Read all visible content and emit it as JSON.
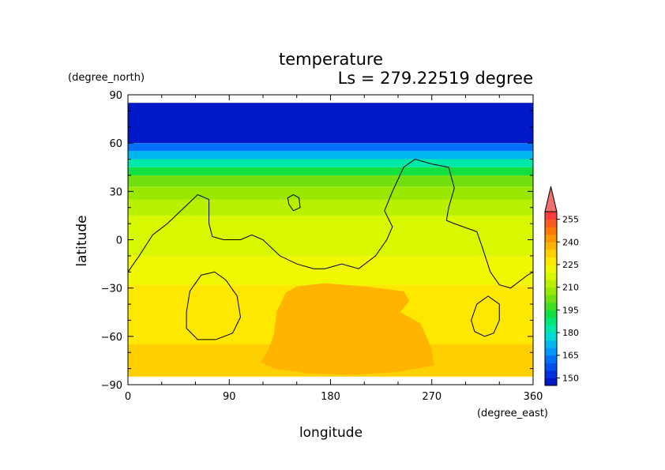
{
  "chart_data": {
    "type": "heatmap",
    "title": "temperature",
    "subtitle": "Ls = 279.22519 degree",
    "xlabel": "longitude",
    "ylabel": "latitude",
    "xunits": "(degree_east)",
    "yunits": "(degree_north)",
    "xlim": [
      0,
      360
    ],
    "ylim": [
      -90,
      90
    ],
    "xticks": [
      "0",
      "90",
      "180",
      "270",
      "360"
    ],
    "yticks": [
      "90",
      "60",
      "30",
      "0",
      "−30",
      "−60",
      "−90"
    ],
    "colorbar": {
      "levels": [
        145,
        150,
        155,
        160,
        165,
        170,
        175,
        180,
        185,
        190,
        195,
        200,
        205,
        210,
        215,
        220,
        225,
        230,
        235,
        240,
        245,
        250,
        255,
        260
      ],
      "labels": [
        "150",
        "165",
        "180",
        "195",
        "210",
        "225",
        "240",
        "255"
      ],
      "colors": [
        "#0018c8",
        "#0030e0",
        "#0050f0",
        "#0070ff",
        "#0096ff",
        "#00b8f0",
        "#00d8d8",
        "#00e8a8",
        "#00e878",
        "#10e040",
        "#40e020",
        "#70e010",
        "#98e800",
        "#b8f000",
        "#d8f800",
        "#f0f800",
        "#ffe800",
        "#ffd000",
        "#ffb400",
        "#ff9600",
        "#ff7800",
        "#ff5a1e",
        "#ff3c3c",
        "#f07070"
      ],
      "over_color": "#f07070"
    },
    "zonal_bands": [
      {
        "lat": [
          60,
          85
        ],
        "value": 148
      },
      {
        "lat": [
          55,
          60
        ],
        "value": 160
      },
      {
        "lat": [
          50,
          55
        ],
        "value": 172
      },
      {
        "lat": [
          45,
          50
        ],
        "value": 183
      },
      {
        "lat": [
          40,
          45
        ],
        "value": 192
      },
      {
        "lat": [
          33,
          40
        ],
        "value": 200
      },
      {
        "lat": [
          25,
          33
        ],
        "value": 208
      },
      {
        "lat": [
          15,
          25
        ],
        "value": 213
      },
      {
        "lat": [
          -10,
          15
        ],
        "value": 216
      },
      {
        "lat": [
          -28,
          -10
        ],
        "value": 221
      },
      {
        "lat": [
          -65,
          -28
        ],
        "value": 226
      },
      {
        "lat": [
          -85,
          -65
        ],
        "value": 231
      }
    ],
    "warm_region": {
      "value": 238,
      "points": [
        [
          125,
          -68
        ],
        [
          130,
          -58
        ],
        [
          132,
          -45
        ],
        [
          140,
          -33
        ],
        [
          150,
          -29
        ],
        [
          175,
          -27
        ],
        [
          210,
          -29
        ],
        [
          245,
          -32
        ],
        [
          250,
          -38
        ],
        [
          242,
          -45
        ],
        [
          260,
          -52
        ],
        [
          270,
          -68
        ],
        [
          272,
          -78
        ],
        [
          240,
          -82
        ],
        [
          200,
          -84
        ],
        [
          160,
          -83
        ],
        [
          130,
          -80
        ],
        [
          118,
          -76
        ]
      ]
    },
    "contours": [
      [
        [
          0,
          -20
        ],
        [
          10,
          -10
        ],
        [
          22,
          3
        ],
        [
          35,
          10
        ],
        [
          50,
          20
        ],
        [
          62,
          28
        ],
        [
          72,
          25
        ],
        [
          72,
          10
        ],
        [
          75,
          2
        ],
        [
          85,
          0
        ],
        [
          100,
          0
        ],
        [
          110,
          3
        ],
        [
          120,
          0
        ],
        [
          135,
          -10
        ],
        [
          150,
          -15
        ],
        [
          165,
          -18
        ],
        [
          175,
          -18
        ],
        [
          190,
          -15
        ],
        [
          205,
          -18
        ],
        [
          220,
          -10
        ],
        [
          230,
          0
        ],
        [
          235,
          8
        ],
        [
          228,
          18
        ],
        [
          235,
          30
        ],
        [
          245,
          45
        ],
        [
          255,
          50
        ],
        [
          270,
          47
        ],
        [
          285,
          45
        ],
        [
          290,
          32
        ],
        [
          285,
          20
        ],
        [
          283,
          12
        ],
        [
          290,
          10
        ],
        [
          310,
          5
        ],
        [
          315,
          -5
        ],
        [
          322,
          -20
        ],
        [
          330,
          -28
        ],
        [
          340,
          -30
        ],
        [
          355,
          -22
        ],
        [
          360,
          -20
        ]
      ],
      [
        [
          143,
          22
        ],
        [
          142,
          26
        ],
        [
          147,
          28
        ],
        [
          152,
          26
        ],
        [
          153,
          20
        ],
        [
          147,
          18
        ],
        [
          143,
          22
        ]
      ],
      [
        [
          52,
          -45
        ],
        [
          55,
          -32
        ],
        [
          65,
          -22
        ],
        [
          77,
          -20
        ],
        [
          87,
          -25
        ],
        [
          97,
          -35
        ],
        [
          100,
          -48
        ],
        [
          93,
          -58
        ],
        [
          78,
          -62
        ],
        [
          62,
          -62
        ],
        [
          52,
          -55
        ],
        [
          52,
          -45
        ]
      ],
      [
        [
          305,
          -50
        ],
        [
          310,
          -40
        ],
        [
          320,
          -35
        ],
        [
          330,
          -40
        ],
        [
          330,
          -50
        ],
        [
          325,
          -58
        ],
        [
          317,
          -60
        ],
        [
          308,
          -57
        ],
        [
          305,
          -50
        ]
      ]
    ]
  }
}
